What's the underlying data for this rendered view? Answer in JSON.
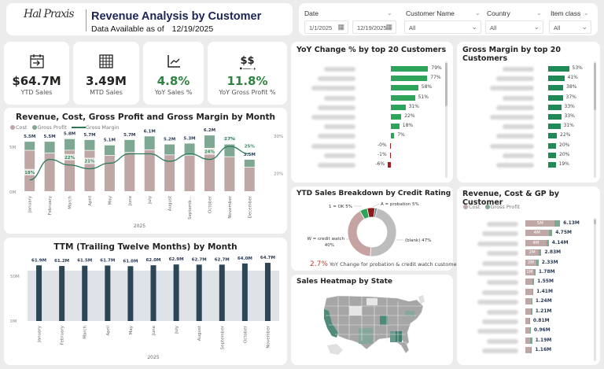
{
  "header": {
    "logo_text": "Hal Praxis",
    "title": "Revenue Analysis by Customer",
    "as_of_label": "Data Available as of",
    "as_of_date": "12/19/2025"
  },
  "filters": {
    "date": {
      "label": "Date",
      "from": "1/1/2025",
      "to": "12/19/2025"
    },
    "customer_name": {
      "label": "Customer Name",
      "value": "All"
    },
    "country": {
      "label": "Country",
      "value": "All"
    },
    "item_class": {
      "label": "Item class",
      "value": "All"
    }
  },
  "kpis": [
    {
      "icon": "calendar-arrow-icon",
      "value": "$64.7M",
      "label": "YTD Sales"
    },
    {
      "icon": "grid-table-icon",
      "value": "3.49M",
      "label": "MTD Sales"
    },
    {
      "icon": "line-chart-icon",
      "value": "4.8%",
      "label": "YoY Sales %"
    },
    {
      "icon": "dollar-transfer-icon",
      "value": "11.8%",
      "label": "YoY Gross Profit %"
    }
  ],
  "colors": {
    "cost": "#bfa7a6",
    "gross_profit": "#7fa893",
    "gross_margin_line": "#2a7a5a",
    "ttm_bar": "#2c4656",
    "positive": "#2ea35a",
    "negative": "#a51c20",
    "gm_bar": "#1f8a55"
  },
  "chart_data": [
    {
      "id": "monthly",
      "type": "bar",
      "title": "Revenue, Cost, Gross Profit and Gross Margin by Month",
      "legend": [
        "Cost",
        "Gross Profit",
        "Gross Margin"
      ],
      "legend_position": "top-left",
      "categories": [
        "January",
        "February",
        "March",
        "April",
        "May",
        "June",
        "July",
        "August",
        "Septemb...",
        "October",
        "November",
        "December"
      ],
      "xlabel": "2025",
      "y_ticks": [
        "0M",
        "5M"
      ],
      "y2_ticks": [
        "20%",
        "30%"
      ],
      "ylim": [
        0,
        7
      ],
      "y2lim": [
        15,
        31
      ],
      "revenue_labels": [
        "5.5M",
        "5.5M",
        "5.8M",
        "5.7M",
        "5.1M",
        "5.7M",
        "6.1M",
        "5.2M",
        "5.3M",
        "6.2M",
        "5.2M",
        "3.5M"
      ],
      "revenue": [
        5.5,
        5.5,
        5.8,
        5.7,
        5.1,
        5.7,
        6.1,
        5.2,
        5.3,
        6.2,
        5.2,
        3.5
      ],
      "gross_margin": [
        18,
        23.5,
        22,
        21,
        22.5,
        25,
        25,
        23,
        25,
        23.5,
        27,
        25
      ],
      "gm_labels": [
        {
          "index": 0,
          "text": "18%"
        },
        {
          "index": 2,
          "text": "22%"
        },
        {
          "index": 3,
          "text": "21%"
        },
        {
          "index": 9,
          "text": "24%"
        },
        {
          "index": 10,
          "text": "27%"
        },
        {
          "index": 11,
          "text": "25%"
        }
      ]
    },
    {
      "id": "ttm",
      "type": "bar",
      "title": "TTM (Trailing Twelve Months) by Month",
      "categories": [
        "January",
        "February",
        "March",
        "April",
        "May",
        "June",
        "July",
        "August",
        "September",
        "October",
        "November"
      ],
      "xlabel": "2025",
      "y_ticks": [
        "0M",
        "50M"
      ],
      "ylim": [
        0,
        70
      ],
      "values": [
        61.9,
        61.2,
        61.5,
        61.7,
        61.0,
        62.0,
        62.9,
        62.7,
        62.7,
        64.0,
        64.7
      ],
      "labels": [
        "61.9M",
        "61.2M",
        "61.5M",
        "61.7M",
        "61.0M",
        "62.0M",
        "62.9M",
        "62.7M",
        "62.7M",
        "64.0M",
        "64.7M"
      ]
    },
    {
      "id": "yoy",
      "type": "bar",
      "title": "YoY Change % by top 20 Customers",
      "values": [
        79,
        77,
        58,
        51,
        31,
        22,
        18,
        7,
        -0.3,
        -1,
        -6
      ],
      "labels": [
        "79%",
        "77%",
        "58%",
        "51%",
        "31%",
        "22%",
        "18%",
        "7%",
        "-0%",
        "-1%",
        "-6%"
      ]
    },
    {
      "id": "gm",
      "type": "bar",
      "title": "Gross Margin by top 20 Customers",
      "values": [
        53,
        41,
        38,
        37,
        33,
        33,
        31,
        22,
        20,
        20,
        19
      ],
      "labels": [
        "53%",
        "41%",
        "38%",
        "37%",
        "33%",
        "33%",
        "31%",
        "22%",
        "20%",
        "20%",
        "19%"
      ]
    },
    {
      "id": "credit",
      "type": "pie",
      "title": "YTD Sales Breakdown by Credit Rating",
      "slices": [
        {
          "name": "(blank)",
          "value": 47,
          "label": "(blank) 47%",
          "color": "#bdbdbd"
        },
        {
          "name": "W = credit watch",
          "value": 40,
          "label1": "W = credit watch",
          "label2": "40%",
          "color": "#c6a3a3"
        },
        {
          "name": "1 = OK",
          "value": 5,
          "label": "1 = OK 5%",
          "color": "#2ea35a"
        },
        {
          "name": "A = probation",
          "value": 5,
          "label": "A = probation 5%",
          "color": "#8b1a1a"
        },
        {
          "name": "other",
          "value": 1.5,
          "color": "#5b7a8c"
        }
      ],
      "footer_value": "2.7%",
      "footer_text": "YoY Change for probation & credit watch customers"
    },
    {
      "id": "rcgp",
      "type": "bar",
      "title": "Revenue, Cost & GP by Customer",
      "legend": [
        "Cost",
        "Gross Profit"
      ],
      "revenue": [
        6.13,
        4.75,
        4.14,
        2.83,
        2.33,
        1.78,
        1.55,
        1.41,
        1.24,
        1.21,
        0.81,
        0.96,
        1.19,
        1.16
      ],
      "cost": [
        5.2,
        4.1,
        3.7,
        2.4,
        1.9,
        1.5,
        1.3,
        1.2,
        1.05,
        1.0,
        0.7,
        0.85,
        0.9,
        0.95
      ],
      "cost_labels": [
        "5M",
        "4M",
        "4M",
        "2M",
        "2M",
        "1M",
        "",
        "",
        "",
        "",
        "",
        "",
        "",
        ""
      ],
      "labels": [
        "6.13M",
        "4.75M",
        "4.14M",
        "2.83M",
        "2.33M",
        "1.78M",
        "1.55M",
        "1.41M",
        "1.24M",
        "1.21M",
        "0.81M",
        "0.96M",
        "1.19M",
        "1.16M"
      ]
    }
  ],
  "map": {
    "title": "Sales Heatmap by State",
    "highlighted": [
      "California",
      "Missouri",
      "Georgia",
      "Alabama"
    ]
  }
}
